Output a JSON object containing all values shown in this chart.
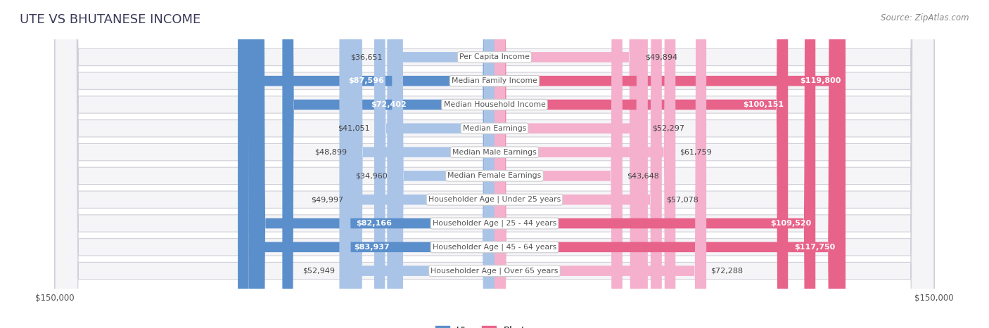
{
  "title": "UTE VS BHUTANESE INCOME",
  "source": "Source: ZipAtlas.com",
  "categories": [
    "Per Capita Income",
    "Median Family Income",
    "Median Household Income",
    "Median Earnings",
    "Median Male Earnings",
    "Median Female Earnings",
    "Householder Age | Under 25 years",
    "Householder Age | 25 - 44 years",
    "Householder Age | 45 - 64 years",
    "Householder Age | Over 65 years"
  ],
  "ute_values": [
    36651,
    87596,
    72402,
    41051,
    48899,
    34960,
    49997,
    82166,
    83937,
    52949
  ],
  "bhutanese_values": [
    49894,
    119800,
    100151,
    52297,
    61759,
    43648,
    57078,
    109520,
    117750,
    72288
  ],
  "ute_labels": [
    "$36,651",
    "$87,596",
    "$72,402",
    "$41,051",
    "$48,899",
    "$34,960",
    "$49,997",
    "$82,166",
    "$83,937",
    "$52,949"
  ],
  "bhutanese_labels": [
    "$49,894",
    "$119,800",
    "$100,151",
    "$52,297",
    "$61,759",
    "$43,648",
    "$57,078",
    "$109,520",
    "$117,750",
    "$72,288"
  ],
  "ute_color_light": "#aac4e8",
  "ute_color_dark": "#5b8fcb",
  "bhutanese_color_light": "#f4b0cc",
  "bhutanese_color_dark": "#e8638a",
  "max_value": 150000,
  "bg_row_color": "#f5f5f8",
  "label_outside_color": "#444444",
  "label_inside_color": "#ffffff",
  "center_label_bg": "#ffffff",
  "center_label_color": "#555555",
  "title_color": "#3a3a5a",
  "source_color": "#888888",
  "ute_dark_threshold": 60000,
  "bhu_dark_threshold": 80000,
  "ute_inside_threshold": 60000,
  "bhu_inside_threshold": 80000
}
